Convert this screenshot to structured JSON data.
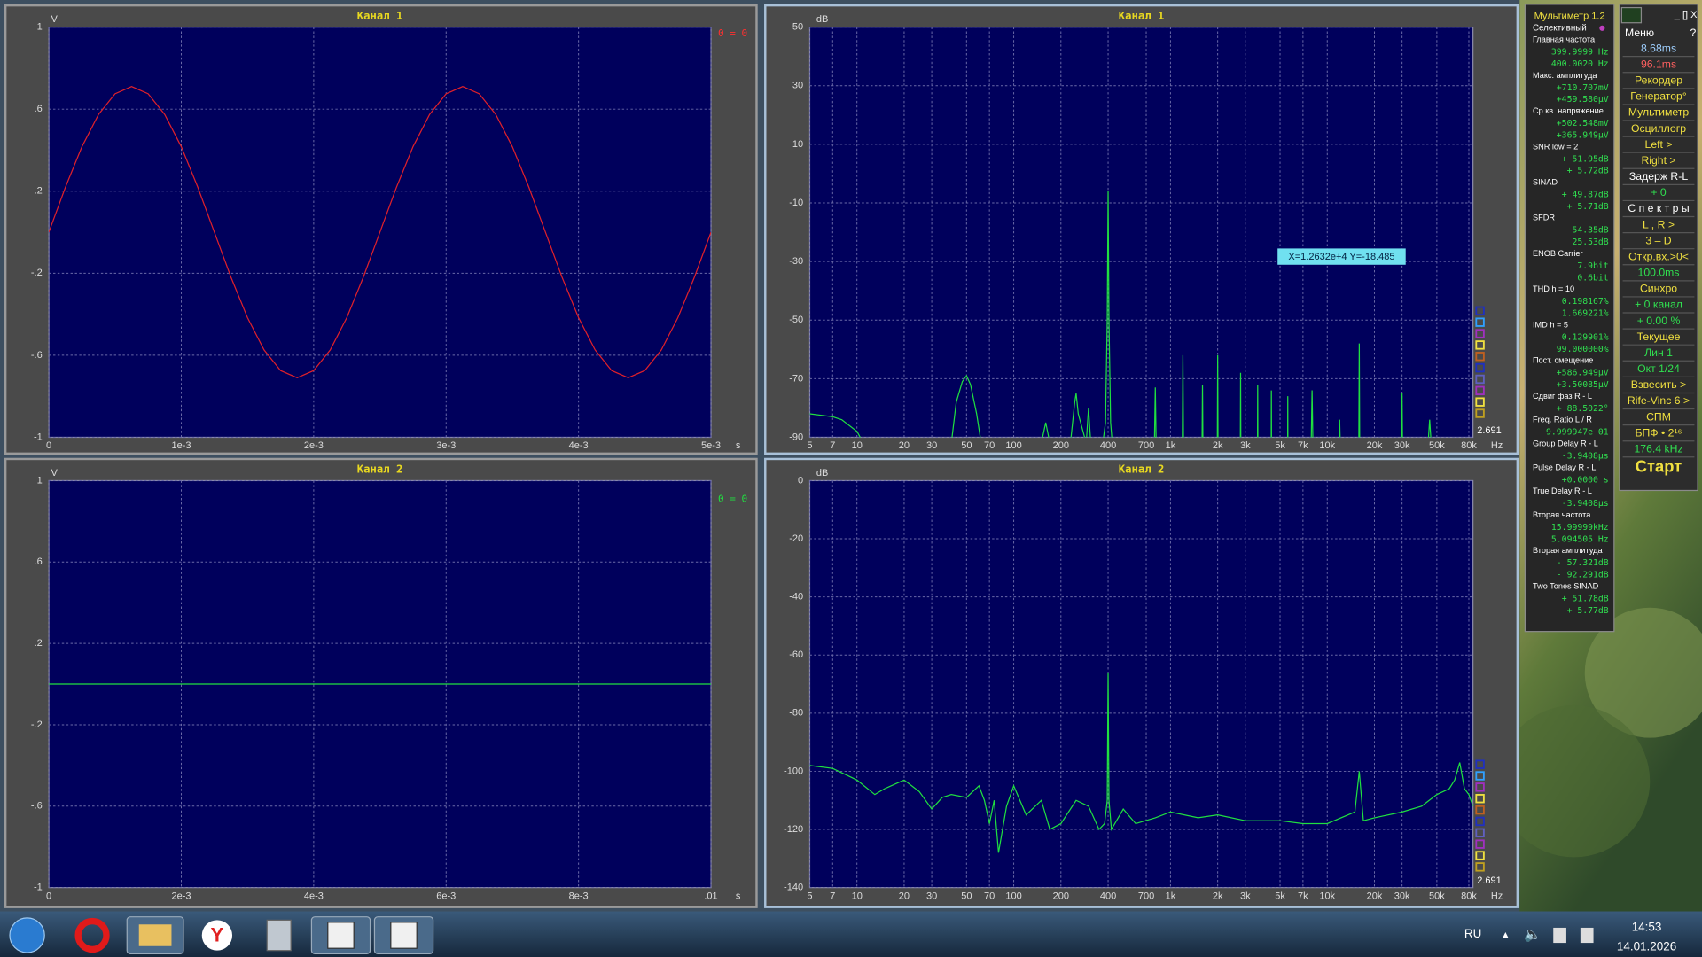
{
  "panels": [
    {
      "type": "line",
      "title": "Канал 1",
      "y_unit": "V",
      "x_unit": "s",
      "xscale": "linear",
      "color": "#e0202a",
      "label": "0 = 0",
      "label_color": "#ff3030",
      "xlim": [
        0,
        0.005
      ],
      "ylim": [
        -1,
        1
      ],
      "xticks": [
        0,
        {
          "value": 0.001,
          "label": "1e-3"
        },
        {
          "value": 0.002,
          "label": "2e-3"
        },
        {
          "value": 0.003,
          "label": "3e-3"
        },
        {
          "value": 0.004,
          "label": "4e-3"
        },
        {
          "value": 0.005,
          "label": "5e-3"
        }
      ],
      "yticks": [
        1,
        {
          "value": 0.6,
          "label": ".6"
        },
        {
          "value": 0.2,
          "label": ".2"
        },
        {
          "value": -0.2,
          "label": "-.2"
        },
        {
          "value": -0.6,
          "label": "-.6"
        },
        -1
      ],
      "x": [
        0,
        0.000125,
        0.00025,
        0.000375,
        0.0005,
        0.000625,
        0.00075,
        0.000875,
        0.001,
        0.001125,
        0.00125,
        0.001375,
        0.0015,
        0.001625,
        0.00175,
        0.001875,
        0.002,
        0.002125,
        0.00225,
        0.002375,
        0.0025,
        0.002625,
        0.00275,
        0.002875,
        0.003,
        0.003125,
        0.00325,
        0.003375,
        0.0035,
        0.003625,
        0.00375,
        0.003875,
        0.004,
        0.004125,
        0.00425,
        0.004375,
        0.0045,
        0.004625,
        0.00475,
        0.004875,
        0.005
      ],
      "values": [
        0,
        0.219,
        0.417,
        0.574,
        0.675,
        0.71,
        0.675,
        0.574,
        0.417,
        0.219,
        0,
        -0.219,
        -0.417,
        -0.574,
        -0.675,
        -0.71,
        -0.675,
        -0.574,
        -0.417,
        -0.219,
        0,
        0.219,
        0.417,
        0.574,
        0.675,
        0.71,
        0.675,
        0.574,
        0.417,
        0.219,
        0,
        -0.219,
        -0.417,
        -0.574,
        -0.675,
        -0.71,
        -0.675,
        -0.574,
        -0.417,
        -0.219,
        0
      ]
    },
    {
      "type": "line",
      "title": "Канал 2",
      "y_unit": "V",
      "x_unit": "s",
      "xscale": "linear",
      "color": "#20e040",
      "label": "0 = 0",
      "label_color": "#20e040",
      "xlim": [
        0,
        0.01
      ],
      "ylim": [
        -1,
        1
      ],
      "xticks": [
        0,
        {
          "value": 0.002,
          "label": "2e-3"
        },
        {
          "value": 0.004,
          "label": "4e-3"
        },
        {
          "value": 0.006,
          "label": "6e-3"
        },
        {
          "value": 0.008,
          "label": "8e-3"
        },
        {
          "value": 0.01,
          "label": ".01"
        }
      ],
      "yticks": [
        1,
        {
          "value": 0.6,
          "label": ".6"
        },
        {
          "value": 0.2,
          "label": ".2"
        },
        {
          "value": -0.2,
          "label": "-.2"
        },
        {
          "value": -0.6,
          "label": "-.6"
        },
        -1
      ],
      "x": [
        0,
        0.01
      ],
      "values": [
        0,
        0
      ]
    },
    {
      "type": "line",
      "title": "Канал 1",
      "y_unit": "dB",
      "x_unit": "Hz",
      "xscale": "log",
      "color": "#20e040",
      "scale_label": "2.691",
      "readout": "X=1.2632e+4  Y=-18.485",
      "xlim": [
        5,
        85000
      ],
      "ylim": [
        -90,
        50
      ],
      "xticks": [
        5,
        7,
        10,
        20,
        30,
        50,
        70,
        100,
        200,
        400,
        700,
        {
          "value": 1000,
          "label": "1k"
        },
        {
          "value": 2000,
          "label": "2k"
        },
        {
          "value": 3000,
          "label": "3k"
        },
        {
          "value": 5000,
          "label": "5k"
        },
        {
          "value": 7000,
          "label": "7k"
        },
        {
          "value": 10000,
          "label": "10k"
        },
        {
          "value": 20000,
          "label": "20k"
        },
        {
          "value": 30000,
          "label": "30k"
        },
        {
          "value": 50000,
          "label": "50k"
        },
        {
          "value": 80000,
          "label": "80k"
        }
      ],
      "yticks": [
        50,
        30,
        10,
        -10,
        -30,
        -50,
        -70,
        -90
      ],
      "x": [
        5,
        7,
        8,
        10,
        11,
        40,
        43,
        47,
        50,
        53,
        58,
        62,
        150,
        160,
        170,
        230,
        245,
        250,
        258,
        290,
        300,
        310,
        370,
        385,
        395,
        400,
        405,
        415,
        425,
        790,
        800,
        810,
        1190,
        1200,
        1210,
        1590,
        1600,
        1610,
        1990,
        2000,
        2010,
        2790,
        2800,
        2810,
        3590,
        3600,
        3610,
        4390,
        4400,
        4410,
        5590,
        5600,
        5610,
        7900,
        8000,
        8100,
        11900,
        12000,
        12100,
        15900,
        16000,
        16100,
        29800,
        30000,
        30200,
        44000,
        45000,
        46000
      ],
      "values": [
        -82,
        -83,
        -84,
        -88,
        -92,
        -92,
        -78,
        -71,
        -69,
        -72,
        -82,
        -92,
        -92,
        -85,
        -92,
        -92,
        -78,
        -75,
        -82,
        -92,
        -80,
        -92,
        -92,
        -85,
        -50,
        -6,
        -50,
        -85,
        -92,
        -92,
        -73,
        -92,
        -92,
        -62,
        -92,
        -92,
        -72,
        -92,
        -92,
        -62,
        -92,
        -92,
        -68,
        -92,
        -92,
        -72,
        -92,
        -92,
        -74,
        -92,
        -92,
        -76,
        -92,
        -92,
        -74,
        -92,
        -92,
        -84,
        -92,
        -92,
        -58,
        -92,
        -92,
        -75,
        -92,
        -92,
        -84,
        -92
      ]
    },
    {
      "type": "line",
      "title": "Канал 2",
      "y_unit": "dB",
      "x_unit": "Hz",
      "xscale": "log",
      "color": "#20e040",
      "scale_label": "2.691",
      "xlim": [
        5,
        85000
      ],
      "ylim": [
        -140,
        0
      ],
      "xticks": [
        5,
        7,
        10,
        20,
        30,
        50,
        70,
        100,
        200,
        400,
        700,
        {
          "value": 1000,
          "label": "1k"
        },
        {
          "value": 2000,
          "label": "2k"
        },
        {
          "value": 3000,
          "label": "3k"
        },
        {
          "value": 5000,
          "label": "5k"
        },
        {
          "value": 7000,
          "label": "7k"
        },
        {
          "value": 10000,
          "label": "10k"
        },
        {
          "value": 20000,
          "label": "20k"
        },
        {
          "value": 30000,
          "label": "30k"
        },
        {
          "value": 50000,
          "label": "50k"
        },
        {
          "value": 80000,
          "label": "80k"
        }
      ],
      "yticks": [
        0,
        -20,
        -40,
        -60,
        -80,
        -100,
        -120,
        -140
      ],
      "x": [
        5,
        7,
        10,
        13,
        15,
        20,
        25,
        30,
        35,
        40,
        50,
        60,
        65,
        70,
        75,
        80,
        90,
        100,
        120,
        150,
        170,
        200,
        250,
        300,
        350,
        380,
        395,
        400,
        405,
        420,
        500,
        600,
        800,
        1000,
        1500,
        2000,
        3000,
        5000,
        7000,
        10000,
        15000,
        16000,
        17000,
        20000,
        30000,
        40000,
        50000,
        60000,
        65000,
        70000,
        75000,
        80000,
        85000
      ],
      "values": [
        -98,
        -99,
        -103,
        -108,
        -106,
        -103,
        -107,
        -113,
        -109,
        -108,
        -109,
        -105,
        -110,
        -118,
        -110,
        -128,
        -112,
        -105,
        -115,
        -110,
        -120,
        -118,
        -110,
        -112,
        -120,
        -118,
        -110,
        -66,
        -110,
        -120,
        -113,
        -118,
        -116,
        -114,
        -116,
        -115,
        -117,
        -117,
        -118,
        -118,
        -114,
        -100,
        -117,
        -116,
        -114,
        -112,
        -108,
        -106,
        -103,
        -97,
        -106,
        -108,
        -112
      ]
    }
  ],
  "multimeter": {
    "title": "Мультиметр 1.2",
    "mode": "Селективный",
    "sections": [
      {
        "label": "Главная частота",
        "values": [
          "399.9999 Hz",
          "400.0020 Hz"
        ]
      },
      {
        "label": "Макс. амплитуда",
        "values": [
          "+710.707mV",
          "+459.580µV"
        ]
      },
      {
        "label": "Ср.кв. напряжение",
        "values": [
          "+502.548mV",
          "+365.949µV"
        ]
      },
      {
        "label": "SNR     low = 2",
        "values": [
          "+ 51.95dB",
          "+ 5.72dB"
        ]
      },
      {
        "label": "SINAD",
        "values": [
          "+ 49.87dB",
          "+ 5.71dB"
        ]
      },
      {
        "label": "SFDR",
        "values": [
          "54.35dB",
          "25.53dB"
        ]
      },
      {
        "label": "ENOB   Carrier",
        "values": [
          "7.9bit",
          "0.6bit"
        ]
      },
      {
        "label": "THD      h = 10",
        "values": [
          "0.198167%",
          "1.669221%"
        ]
      },
      {
        "label": "IMD      h = 5",
        "values": [
          "0.129901%",
          "99.000000%"
        ]
      },
      {
        "label": "Пост. смещение",
        "values": [
          "+586.949µV",
          "+3.50085µV"
        ]
      },
      {
        "label": "Сдвиг фаз R - L",
        "values": [
          "+ 88.5022°"
        ]
      },
      {
        "label": "Freq. Ratio  L / R",
        "values": [
          "9.999947e-01"
        ]
      },
      {
        "label": "Group Delay R - L",
        "values": [
          "-3.9408µs"
        ]
      },
      {
        "label": "Pulse Delay R - L",
        "values": [
          "+0.0000  s"
        ]
      },
      {
        "label": "True Delay R - L",
        "values": [
          "-3.9408µs"
        ]
      },
      {
        "label": "Вторая частота",
        "values": [
          "15.99999kHz",
          "5.094505 Hz"
        ]
      },
      {
        "label": "Вторая амплитуда",
        "values": [
          "- 57.321dB",
          "- 92.291dB"
        ]
      },
      {
        "label": "Two Tones SINAD",
        "values": [
          "+ 51.78dB",
          "+ 5.77dB"
        ]
      }
    ]
  },
  "menu": {
    "title": "Меню",
    "help": "?",
    "items": [
      {
        "text": "8.68ms",
        "color": "#9fd0ff"
      },
      {
        "text": "96.1ms",
        "color": "#ff6060"
      },
      {
        "text": "Рекордер",
        "color": "#f0e040"
      },
      {
        "text": "Генератор°",
        "color": "#f0e040"
      },
      {
        "text": "Мультиметр",
        "color": "#f0e040"
      },
      {
        "text": "Осциллогр",
        "color": "#f0e040"
      },
      {
        "text": "Left    >",
        "color": "#f0e040"
      },
      {
        "text": "Right   >",
        "color": "#f0e040"
      },
      {
        "text": "Задерж  R-L",
        "color": "#ffffff"
      },
      {
        "text": "+       0",
        "color": "#30e050"
      },
      {
        "text": "С п е к т р ы",
        "color": "#ffffff"
      },
      {
        "text": "L , R   >",
        "color": "#f0e040"
      },
      {
        "text": "3 – D",
        "color": "#f0e040"
      },
      {
        "text": "Откр.вх.>0<",
        "color": "#f0e040"
      },
      {
        "text": "100.0ms",
        "color": "#30e050"
      },
      {
        "text": "Синхро",
        "color": "#f0e040"
      },
      {
        "text": "+ 0 канал",
        "color": "#30e050"
      },
      {
        "text": "+ 0.00 %",
        "color": "#30e050"
      },
      {
        "text": "Текущее",
        "color": "#f0e040"
      },
      {
        "text": "Лин      1",
        "color": "#30e050"
      },
      {
        "text": "Окт  1/24",
        "color": "#30e050"
      },
      {
        "text": "Взвесить  >",
        "color": "#f0e040"
      },
      {
        "text": "Rife-Vinc 6 >",
        "color": "#f0e040"
      },
      {
        "text": "СПМ",
        "color": "#f0e040"
      },
      {
        "text": "БПФ • 2¹⁶",
        "color": "#f0e040"
      },
      {
        "text": "176.4 kHz",
        "color": "#30e050"
      }
    ],
    "start": "Старт"
  },
  "taskbar": {
    "language": "RU",
    "time": "14:53",
    "date": "14.01.2026"
  }
}
